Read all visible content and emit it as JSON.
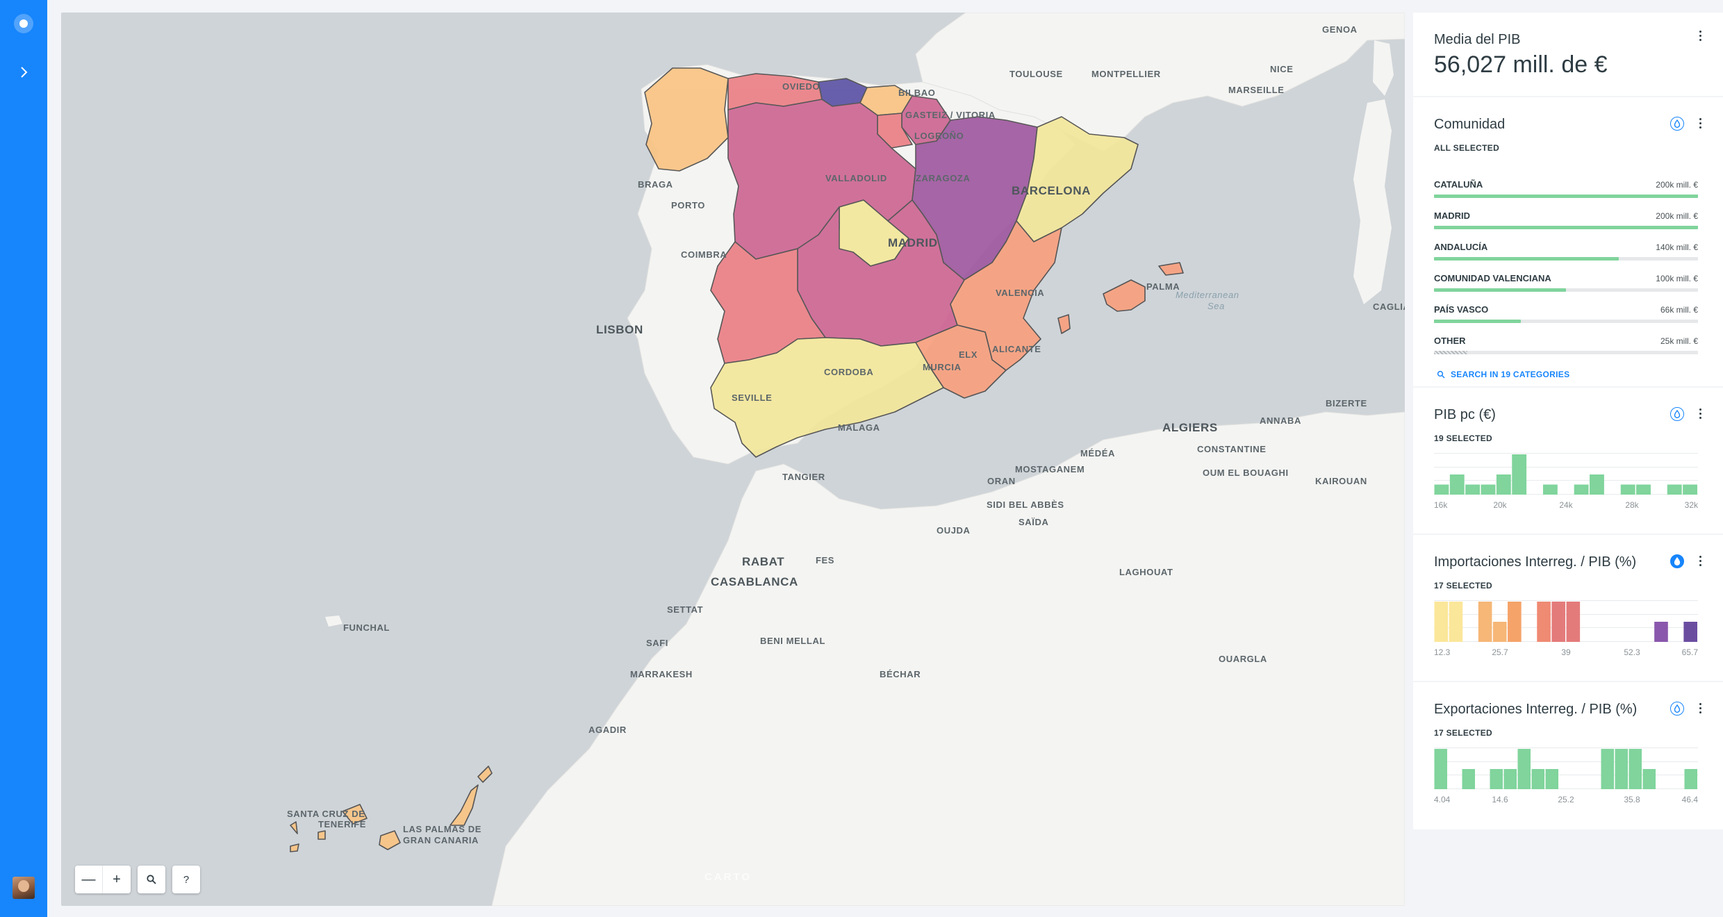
{
  "map": {
    "labels": {
      "capitals": [
        "MADRID",
        "BARCELONA",
        "LISBON",
        "ALGIERS",
        "RABAT",
        "CASABLANCA"
      ],
      "cities": [
        "OVIEDO",
        "BILBAO",
        "GASTEIZ / VITORIA",
        "LOGROÑO",
        "VALLADOLID",
        "ZARAGOZA",
        "BRAGA",
        "PORTO",
        "COIMBRA",
        "VALENCIA",
        "ALICANTE",
        "ELX",
        "MURCIA",
        "CORDOBA",
        "SEVILLE",
        "MALAGA",
        "TANGIER",
        "PALMA",
        "TOULOUSE",
        "MONTPELLIER",
        "MARSEILLE",
        "NICE",
        "GENOA",
        "CAGLIA",
        "BIZERTE",
        "ANNABA",
        "CONSTANTINE",
        "OUM EL BOUAGHI",
        "KAIROUAN",
        "MÉDÉA",
        "MOSTAGANEM",
        "ORAN",
        "SIDI BEL ABBÈS",
        "SAÏDA",
        "OUJDA",
        "FES",
        "SETTAT",
        "SAFI",
        "BENI MELLAL",
        "MARRAKESH",
        "BÉCHAR",
        "AGADIR",
        "LAGHOUAT",
        "OUARGLA",
        "FUNCHAL",
        "SANTA CRUZ DE",
        "TENERIFE",
        "LAS PALMAS DE",
        "GRAN CANARIA"
      ],
      "sea": [
        "Mediterranean",
        "Sea"
      ]
    },
    "attribution": "CARTO",
    "controls": {
      "zoom_out": "—",
      "zoom_in": "+",
      "search": "🔍",
      "help": "?"
    }
  },
  "widgets": {
    "formula": {
      "title": "Media del PIB",
      "value": "56,027 mill. de €"
    },
    "category": {
      "title": "Comunidad",
      "status": "ALL SELECTED",
      "items": [
        {
          "name": "CATALUÑA",
          "value": "200k mill. €",
          "fraction": 1.0
        },
        {
          "name": "MADRID",
          "value": "200k mill. €",
          "fraction": 1.0
        },
        {
          "name": "ANDALUCÍA",
          "value": "140k mill. €",
          "fraction": 0.7
        },
        {
          "name": "COMUNIDAD VALENCIANA",
          "value": "100k mill. €",
          "fraction": 0.5
        },
        {
          "name": "PAÍS VASCO",
          "value": "66k mill. €",
          "fraction": 0.33
        },
        {
          "name": "OTHER",
          "value": "25k mill. €",
          "fraction": 0.125
        }
      ],
      "search_label": "SEARCH IN 19 CATEGORIES"
    },
    "histograms": [
      {
        "title": "PIB pc (€)",
        "status": "19 SELECTED",
        "ticks": [
          "16k",
          "20k",
          "24k",
          "28k",
          "32k"
        ],
        "counts": [
          1,
          2,
          1,
          1,
          2,
          4,
          0,
          1,
          0,
          1,
          2,
          0,
          1,
          1,
          0,
          1,
          1
        ],
        "max": 4,
        "colors": [
          "#80d49c"
        ],
        "color_by_value": false
      },
      {
        "title": "Importaciones Interreg. / PIB (%)",
        "status": "17 SELECTED",
        "ticks": [
          "12.3",
          "25.7",
          "39",
          "52.3",
          "65.7"
        ],
        "counts": [
          2,
          2,
          0,
          2,
          1,
          2,
          0,
          2,
          2,
          2,
          0,
          0,
          0,
          0,
          0,
          1,
          0,
          1
        ],
        "max": 2,
        "colors": [
          "#fbe79a",
          "#fbe79a",
          "#fbe79a",
          "#f6b777",
          "#f6b777",
          "#f5a369",
          "#ef8a73",
          "#ef8a73",
          "#e47b7b",
          "#e47b7b",
          "#d56e87",
          "#c5689a",
          "#b562a8",
          "#a55fb3",
          "#9a5fb2",
          "#8a58ac",
          "#7752a6",
          "#6b4da0"
        ],
        "color_by_value": true
      },
      {
        "title": "Exportaciones Interreg. / PIB (%)",
        "status": "17 SELECTED",
        "ticks": [
          "4.04",
          "14.6",
          "25.2",
          "35.8",
          "46.4"
        ],
        "counts": [
          2,
          0,
          1,
          0,
          1,
          1,
          2,
          1,
          1,
          0,
          0,
          0,
          2,
          2,
          2,
          1,
          0,
          0,
          1
        ],
        "max": 2,
        "colors": [
          "#80d49c"
        ],
        "color_by_value": false
      }
    ]
  },
  "colors": {
    "accent": "#1785fb",
    "bar": "#80d49c",
    "choropleth": [
      "#f3e79b",
      "#fac484",
      "#f8a07e",
      "#eb7f86",
      "#ce6693",
      "#a059a0",
      "#5c53a5"
    ]
  }
}
